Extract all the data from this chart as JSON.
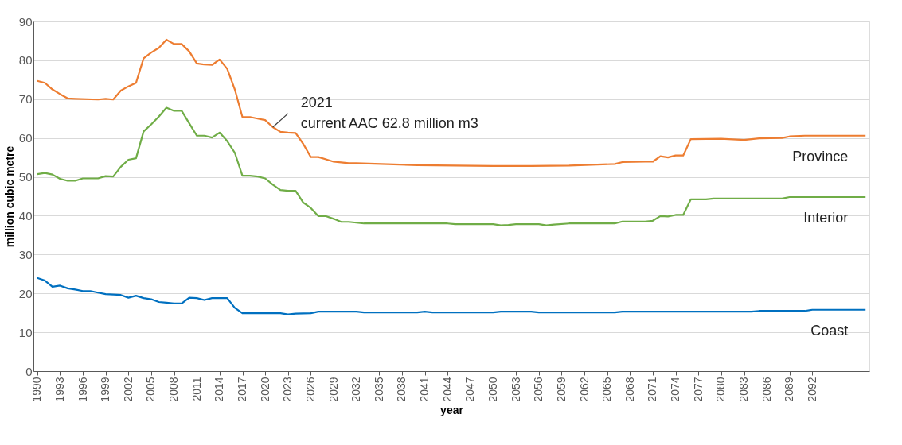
{
  "chart_data": {
    "type": "line",
    "xlabel": "year",
    "ylabel": "million cubic metre",
    "xlim": [
      1989.5,
      2099.5
    ],
    "xticks": [
      1990,
      1993,
      1996,
      1999,
      2002,
      2005,
      2008,
      2011,
      2014,
      2017,
      2020,
      2023,
      2026,
      2029,
      2032,
      2035,
      2038,
      2041,
      2044,
      2047,
      2050,
      2053,
      2056,
      2059,
      2062,
      2065,
      2068,
      2071,
      2074,
      2077,
      2080,
      2083,
      2086,
      2089,
      2092
    ],
    "ylim": [
      0,
      90
    ],
    "yticks": [
      0,
      10,
      20,
      30,
      40,
      50,
      60,
      70,
      80,
      90
    ],
    "grid": "y",
    "legend": false,
    "marker": "none",
    "line_style": "solid",
    "series": [
      {
        "name": "Province",
        "color": "#ed7d31",
        "x": [
          1990,
          1991,
          1992,
          1993,
          1994,
          1995,
          1998,
          1999,
          2000,
          2001,
          2002,
          2003,
          2004,
          2005,
          2006,
          2007,
          2008,
          2009,
          2010,
          2011,
          2012,
          2013,
          2014,
          2015,
          2016,
          2017,
          2018,
          2019,
          2020,
          2021,
          2022,
          2023,
          2024,
          2025,
          2026,
          2027,
          2028,
          2029,
          2030,
          2031,
          2032,
          2040,
          2050,
          2055,
          2060,
          2066,
          2067,
          2070,
          2071,
          2072,
          2073,
          2074,
          2075,
          2076,
          2080,
          2083,
          2085,
          2088,
          2089,
          2091,
          2099
        ],
        "values": [
          74.7,
          74.2,
          72.5,
          71.3,
          70.2,
          70.1,
          69.9,
          70.1,
          69.9,
          72.2,
          73.3,
          74.2,
          80.5,
          82.0,
          83.2,
          85.3,
          84.2,
          84.2,
          82.3,
          79.2,
          78.9,
          78.8,
          80.2,
          77.8,
          72.5,
          65.4,
          65.4,
          65.0,
          64.6,
          62.8,
          61.6,
          61.4,
          61.3,
          58.5,
          55.1,
          55.1,
          54.5,
          53.9,
          53.7,
          53.5,
          53.5,
          53.0,
          52.8,
          52.8,
          52.9,
          53.3,
          53.8,
          53.9,
          53.9,
          55.3,
          55.0,
          55.5,
          55.5,
          59.7,
          59.8,
          59.5,
          59.9,
          60.0,
          60.4,
          60.6,
          60.6
        ]
      },
      {
        "name": "Interior",
        "color": "#70ad47",
        "x": [
          1990,
          1991,
          1992,
          1993,
          1994,
          1995,
          1996,
          1998,
          1999,
          2000,
          2001,
          2002,
          2003,
          2004,
          2005,
          2006,
          2007,
          2008,
          2009,
          2010,
          2011,
          2012,
          2013,
          2014,
          2015,
          2016,
          2017,
          2018,
          2019,
          2020,
          2021,
          2022,
          2023,
          2024,
          2025,
          2026,
          2027,
          2028,
          2029,
          2030,
          2031,
          2032,
          2033,
          2044,
          2045,
          2050,
          2051,
          2052,
          2053,
          2056,
          2057,
          2058,
          2060,
          2066,
          2067,
          2070,
          2071,
          2072,
          2073,
          2074,
          2075,
          2076,
          2078,
          2079,
          2088,
          2089,
          2099
        ],
        "values": [
          50.7,
          51.0,
          50.6,
          49.5,
          49.0,
          49.0,
          49.6,
          49.6,
          50.2,
          50.1,
          52.6,
          54.4,
          54.8,
          61.7,
          63.5,
          65.5,
          67.8,
          67.0,
          67.0,
          63.8,
          60.6,
          60.6,
          60.1,
          61.4,
          59.2,
          56.2,
          50.3,
          50.3,
          50.1,
          49.6,
          48.0,
          46.6,
          46.4,
          46.4,
          43.4,
          42.0,
          39.9,
          39.9,
          39.2,
          38.4,
          38.4,
          38.2,
          38.0,
          38.0,
          37.8,
          37.8,
          37.5,
          37.6,
          37.8,
          37.8,
          37.5,
          37.7,
          38.0,
          38.0,
          38.5,
          38.5,
          38.7,
          39.9,
          39.8,
          40.2,
          40.2,
          44.2,
          44.2,
          44.4,
          44.4,
          44.8,
          44.8
        ]
      },
      {
        "name": "Coast",
        "color": "#0070c0",
        "x": [
          1990,
          1991,
          1992,
          1993,
          1994,
          1995,
          1996,
          1997,
          1998,
          1999,
          2000,
          2001,
          2002,
          2003,
          2004,
          2005,
          2006,
          2007,
          2008,
          2009,
          2010,
          2011,
          2012,
          2013,
          2015,
          2016,
          2017,
          2022,
          2023,
          2024,
          2026,
          2027,
          2032,
          2033,
          2040,
          2041,
          2042,
          2050,
          2051,
          2055,
          2056,
          2066,
          2067,
          2084,
          2085,
          2091,
          2092,
          2099
        ],
        "values": [
          24.0,
          23.3,
          21.7,
          22.0,
          21.3,
          21.0,
          20.6,
          20.6,
          20.2,
          19.8,
          19.7,
          19.6,
          18.9,
          19.4,
          18.8,
          18.5,
          17.8,
          17.6,
          17.4,
          17.4,
          18.9,
          18.8,
          18.3,
          18.8,
          18.8,
          16.3,
          14.9,
          14.9,
          14.6,
          14.8,
          14.9,
          15.3,
          15.3,
          15.1,
          15.1,
          15.3,
          15.1,
          15.1,
          15.3,
          15.3,
          15.1,
          15.1,
          15.3,
          15.3,
          15.5,
          15.5,
          15.8,
          15.8
        ]
      }
    ],
    "annotations": [
      {
        "text": "2021\ncurrent AAC 62.8 million m3",
        "x": 2021,
        "y": 62.8
      }
    ]
  }
}
